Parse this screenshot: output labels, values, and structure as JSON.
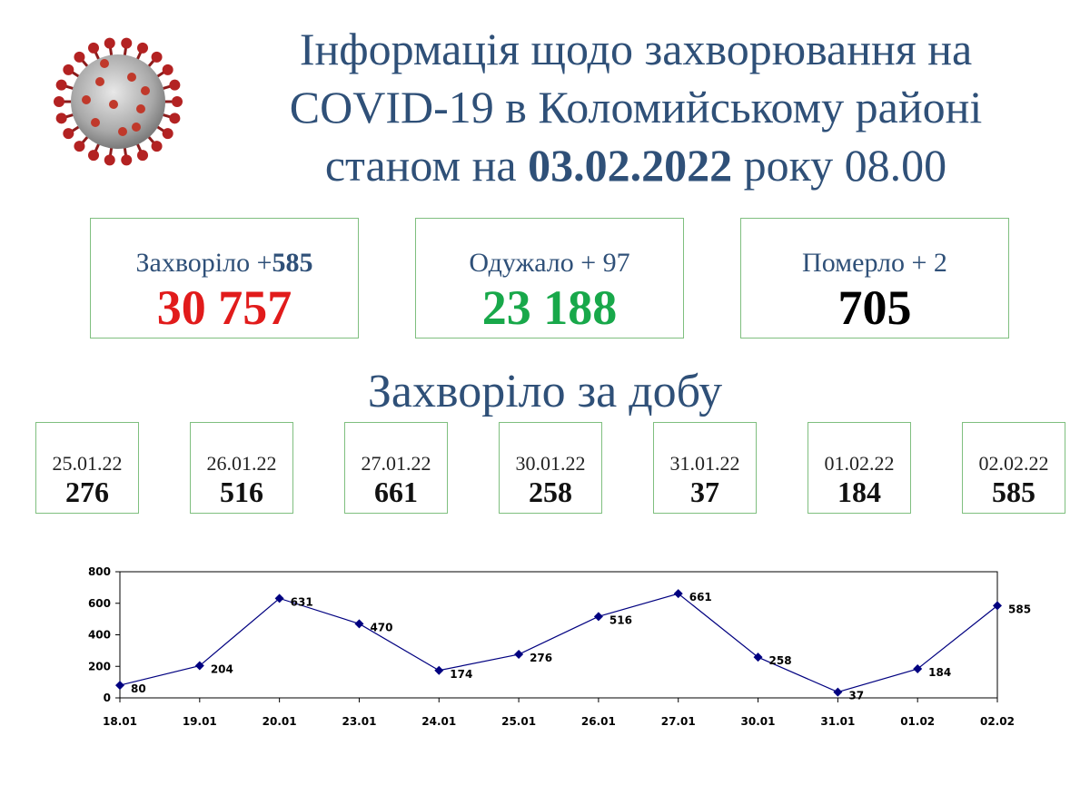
{
  "header": {
    "title_line1": "Інформація щодо захворювання на",
    "title_line2": "COVID-19 в Коломийському районі",
    "title_prefix": "станом на",
    "title_date": "03.02.2022",
    "title_suffix": "року 08.00"
  },
  "stats": [
    {
      "label": "Захворіло +",
      "delta": "585",
      "value": "30 757",
      "color": "#e11b1b"
    },
    {
      "label": "Одужало + 97",
      "delta": "",
      "value": "23 188",
      "color": "#18a84a"
    },
    {
      "label": "Померло + 2",
      "delta": "",
      "value": "705",
      "color": "#000000"
    }
  ],
  "daily_title": "Захворіло за добу",
  "daily": [
    {
      "date": "25.01.22",
      "value": "276"
    },
    {
      "date": "26.01.22",
      "value": "516"
    },
    {
      "date": "27.01.22",
      "value": "661"
    },
    {
      "date": "30.01.22",
      "value": "258"
    },
    {
      "date": "31.01.22",
      "value": "37"
    },
    {
      "date": "01.02.22",
      "value": "184"
    },
    {
      "date": "02.02.22",
      "value": "585"
    }
  ],
  "colors": {
    "title": "#2f5078",
    "box_border": "#7fbf7f",
    "line": "#000080"
  },
  "chart_data": {
    "type": "line",
    "categories": [
      "18.01",
      "19.01",
      "20.01",
      "23.01",
      "24.01",
      "25.01",
      "26.01",
      "27.01",
      "30.01",
      "31.01",
      "01.02",
      "02.02"
    ],
    "values": [
      80,
      204,
      631,
      470,
      174,
      276,
      516,
      661,
      258,
      37,
      184,
      585
    ],
    "ylim": [
      0,
      800
    ],
    "yticks": [
      0,
      200,
      400,
      600,
      800
    ],
    "title": "",
    "xlabel": "",
    "ylabel": "",
    "grid": false,
    "data_labels": true
  }
}
